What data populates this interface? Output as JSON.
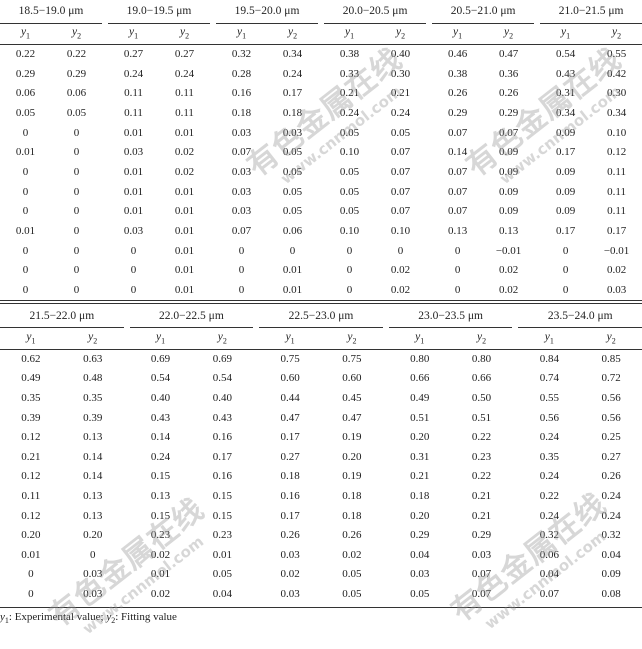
{
  "top_table": {
    "groups": [
      "18.5−19.0 μm",
      "19.0−19.5 μm",
      "19.5−20.0 μm",
      "20.0−20.5 μm",
      "20.5−21.0 μm",
      "21.0−21.5 μm"
    ],
    "sub_headers": [
      "y",
      "1",
      "y",
      "2"
    ],
    "rows": [
      [
        "0.22",
        "0.22",
        "0.27",
        "0.27",
        "0.32",
        "0.34",
        "0.38",
        "0.40",
        "0.46",
        "0.47",
        "0.54",
        "0.55"
      ],
      [
        "0.29",
        "0.29",
        "0.24",
        "0.24",
        "0.28",
        "0.24",
        "0.33",
        "0.30",
        "0.38",
        "0.36",
        "0.43",
        "0.42"
      ],
      [
        "0.06",
        "0.06",
        "0.11",
        "0.11",
        "0.16",
        "0.17",
        "0.21",
        "0.21",
        "0.26",
        "0.26",
        "0.31",
        "0.30"
      ],
      [
        "0.05",
        "0.05",
        "0.11",
        "0.11",
        "0.18",
        "0.18",
        "0.24",
        "0.24",
        "0.29",
        "0.29",
        "0.34",
        "0.34"
      ],
      [
        "0",
        "0",
        "0.01",
        "0.01",
        "0.03",
        "0.03",
        "0.05",
        "0.05",
        "0.07",
        "0.07",
        "0.09",
        "0.10"
      ],
      [
        "0.01",
        "0",
        "0.03",
        "0.02",
        "0.07",
        "0.05",
        "0.10",
        "0.07",
        "0.14",
        "0.09",
        "0.17",
        "0.12"
      ],
      [
        "0",
        "0",
        "0.01",
        "0.02",
        "0.03",
        "0.05",
        "0.05",
        "0.07",
        "0.07",
        "0.09",
        "0.09",
        "0.11"
      ],
      [
        "0",
        "0",
        "0.01",
        "0.01",
        "0.03",
        "0.05",
        "0.05",
        "0.07",
        "0.07",
        "0.09",
        "0.09",
        "0.11"
      ],
      [
        "0",
        "0",
        "0.01",
        "0.01",
        "0.03",
        "0.05",
        "0.05",
        "0.07",
        "0.07",
        "0.09",
        "0.09",
        "0.11"
      ],
      [
        "0.01",
        "0",
        "0.03",
        "0.01",
        "0.07",
        "0.06",
        "0.10",
        "0.10",
        "0.13",
        "0.13",
        "0.17",
        "0.17"
      ],
      [
        "0",
        "0",
        "0",
        "0.01",
        "0",
        "0",
        "0",
        "0",
        "0",
        "−0.01",
        "0",
        "−0.01"
      ],
      [
        "0",
        "0",
        "0",
        "0.01",
        "0",
        "0.01",
        "0",
        "0.02",
        "0",
        "0.02",
        "0",
        "0.02"
      ],
      [
        "0",
        "0",
        "0",
        "0.01",
        "0",
        "0.01",
        "0",
        "0.02",
        "0",
        "0.02",
        "0",
        "0.03"
      ]
    ]
  },
  "bottom_table": {
    "groups": [
      "21.5−22.0 μm",
      "22.0−22.5 μm",
      "22.5−23.0 μm",
      "23.0−23.5 μm",
      "23.5−24.0 μm"
    ],
    "rows": [
      [
        "0.62",
        "0.63",
        "0.69",
        "0.69",
        "0.75",
        "0.75",
        "0.80",
        "0.80",
        "0.84",
        "0.85"
      ],
      [
        "0.49",
        "0.48",
        "0.54",
        "0.54",
        "0.60",
        "0.60",
        "0.66",
        "0.66",
        "0.74",
        "0.72"
      ],
      [
        "0.35",
        "0.35",
        "0.40",
        "0.40",
        "0.44",
        "0.45",
        "0.49",
        "0.50",
        "0.55",
        "0.56"
      ],
      [
        "0.39",
        "0.39",
        "0.43",
        "0.43",
        "0.47",
        "0.47",
        "0.51",
        "0.51",
        "0.56",
        "0.56"
      ],
      [
        "0.12",
        "0.13",
        "0.14",
        "0.16",
        "0.17",
        "0.19",
        "0.20",
        "0.22",
        "0.24",
        "0.25"
      ],
      [
        "0.21",
        "0.14",
        "0.24",
        "0.17",
        "0.27",
        "0.20",
        "0.31",
        "0.23",
        "0.35",
        "0.27"
      ],
      [
        "0.12",
        "0.14",
        "0.15",
        "0.16",
        "0.18",
        "0.19",
        "0.21",
        "0.22",
        "0.24",
        "0.26"
      ],
      [
        "0.11",
        "0.13",
        "0.13",
        "0.15",
        "0.16",
        "0.18",
        "0.18",
        "0.21",
        "0.22",
        "0.24"
      ],
      [
        "0.12",
        "0.13",
        "0.15",
        "0.15",
        "0.17",
        "0.18",
        "0.20",
        "0.21",
        "0.24",
        "0.24"
      ],
      [
        "0.20",
        "0.20",
        "0.23",
        "0.23",
        "0.26",
        "0.26",
        "0.29",
        "0.29",
        "0.32",
        "0.32"
      ],
      [
        "0.01",
        "0",
        "0.02",
        "0.01",
        "0.03",
        "0.02",
        "0.04",
        "0.03",
        "0.06",
        "0.04"
      ],
      [
        "0",
        "0.03",
        "0.01",
        "0.05",
        "0.02",
        "0.05",
        "0.03",
        "0.07",
        "0.04",
        "0.09"
      ],
      [
        "0",
        "0.03",
        "0.02",
        "0.04",
        "0.03",
        "0.05",
        "0.05",
        "0.07",
        "0.07",
        "0.08"
      ]
    ]
  },
  "footnote": {
    "y1": "y",
    "y1_sub": "1",
    "y1_text": ": Experimental value; ",
    "y2": "y",
    "y2_sub": "2",
    "y2_text": ": Fitting value"
  },
  "watermark": {
    "main": "有色金属在线",
    "url": "www.cnnmol.com"
  }
}
